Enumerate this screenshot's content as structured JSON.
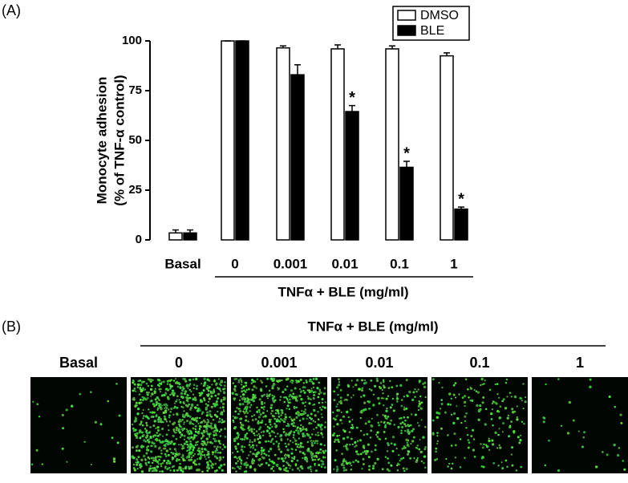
{
  "panel_a_label": "(A)",
  "panel_b_label": "(B)",
  "chart_data": {
    "type": "bar",
    "y_label_lines": [
      "Monocyte adhesion",
      "(% of TNF-α control)"
    ],
    "categories": [
      "Basal",
      "0",
      "0.001",
      "0.01",
      "0.1",
      "1"
    ],
    "group_label": "TNFα + BLE (mg/ml)",
    "ylim": [
      0,
      100
    ],
    "yticks": [
      0,
      25,
      50,
      75,
      100
    ],
    "legend": "top-right",
    "series": [
      {
        "name": "DMSO",
        "color": "#ffffff",
        "values": [
          3.5,
          100,
          96.5,
          96,
          96,
          92.5
        ],
        "errors": [
          1.5,
          0,
          1,
          2,
          1.5,
          1.5
        ]
      },
      {
        "name": "BLE",
        "color": "#000000",
        "values": [
          3.5,
          100,
          83,
          64.5,
          36.5,
          15.5
        ],
        "errors": [
          1.5,
          0,
          5,
          3,
          3,
          1
        ]
      }
    ],
    "annotations": [
      {
        "text": "*",
        "x": "0.01",
        "series": "BLE"
      },
      {
        "text": "*",
        "x": "0.1",
        "series": "BLE"
      },
      {
        "text": "*",
        "x": "1",
        "series": "BLE"
      }
    ]
  },
  "panel_b": {
    "title": "TNFα + BLE (mg/ml)",
    "columns": [
      "Basal",
      "0",
      "0.001",
      "0.01",
      "0.1",
      "1"
    ]
  }
}
